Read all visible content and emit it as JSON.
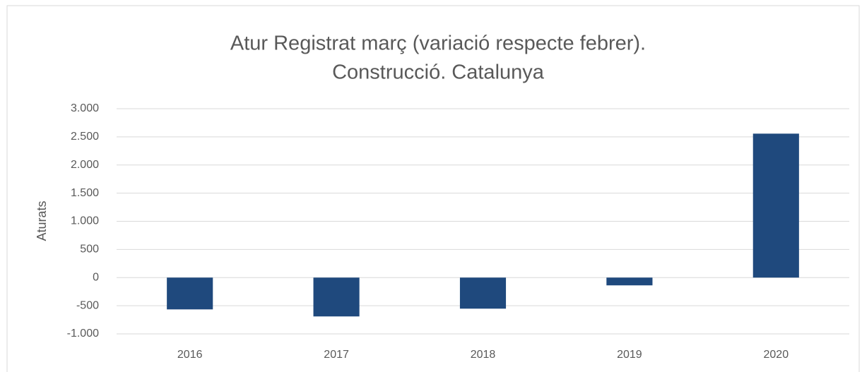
{
  "chart_data": {
    "type": "bar",
    "title": [
      "Atur Registrat març (variació respecte febrer).",
      "Construcció. Catalunya"
    ],
    "y_label": "Aturats",
    "categories": [
      "2016",
      "2017",
      "2018",
      "2019",
      "2020"
    ],
    "values": [
      -565,
      -690,
      -552,
      -138,
      2557
    ],
    "color": "#1f497d",
    "ylim": [
      -1000,
      3000
    ],
    "yticks": [
      {
        "value": -1000,
        "label": "-1.000"
      },
      -500,
      0,
      500,
      {
        "value": 1000,
        "label": "1.000"
      },
      {
        "value": 1500,
        "label": "1.500"
      },
      {
        "value": 2000,
        "label": "2.000"
      },
      {
        "value": 2500,
        "label": "2.500"
      },
      {
        "value": 3000,
        "label": "3.000"
      }
    ],
    "grid": true
  }
}
